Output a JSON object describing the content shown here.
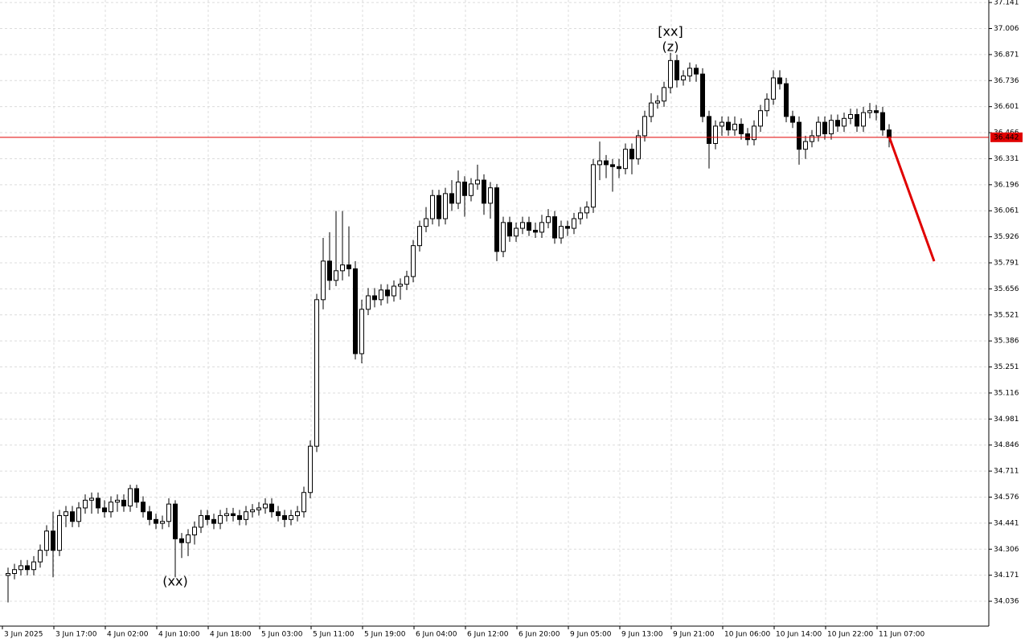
{
  "chart_data": {
    "type": "candlestick",
    "ylim": [
      33.907,
      37.154
    ],
    "yticks": [
      37.141,
      37.006,
      36.871,
      36.736,
      36.601,
      36.466,
      36.331,
      36.196,
      36.061,
      35.926,
      35.791,
      35.656,
      35.521,
      35.386,
      35.251,
      35.116,
      34.981,
      34.846,
      34.711,
      34.576,
      34.441,
      34.306,
      34.171,
      34.036
    ],
    "grid": true,
    "up_color": "#ffffff",
    "down_color": "#000000",
    "current_price": 36.442,
    "current_price_color": "#e00000",
    "annotations": [
      {
        "text": "(xx)",
        "color": "#2020d0"
      },
      {
        "text": "[xx]",
        "color": "#20c020"
      },
      {
        "text": "(z)",
        "color": "#2020d0"
      }
    ],
    "categories": [
      "3 Jun 2025",
      null,
      null,
      null,
      null,
      null,
      null,
      null,
      "3 Jun 17:00",
      null,
      null,
      null,
      null,
      null,
      null,
      null,
      "4 Jun 02:00",
      null,
      null,
      null,
      null,
      null,
      null,
      null,
      "4 Jun 10:00",
      null,
      null,
      null,
      null,
      null,
      null,
      null,
      "4 Jun 18:00",
      null,
      null,
      null,
      null,
      null,
      null,
      null,
      "5 Jun 03:00",
      null,
      null,
      null,
      null,
      null,
      null,
      null,
      "5 Jun 11:00",
      null,
      null,
      null,
      null,
      null,
      null,
      null,
      "5 Jun 19:00",
      null,
      null,
      null,
      null,
      null,
      null,
      null,
      "6 Jun 04:00",
      null,
      null,
      null,
      null,
      null,
      null,
      null,
      "6 Jun 12:00",
      null,
      null,
      null,
      null,
      null,
      null,
      null,
      "6 Jun 20:00",
      null,
      null,
      null,
      null,
      null,
      null,
      null,
      "9 Jun 05:00",
      null,
      null,
      null,
      null,
      null,
      null,
      null,
      "9 Jun 13:00",
      null,
      null,
      null,
      null,
      null,
      null,
      null,
      "9 Jun 21:00",
      null,
      null,
      null,
      null,
      null,
      null,
      null,
      "10 Jun 06:00",
      null,
      null,
      null,
      null,
      null,
      null,
      null,
      "10 Jun 14:00",
      null,
      null,
      null,
      null,
      null,
      null,
      null,
      "10 Jun 22:00",
      null,
      null,
      null,
      null,
      null,
      null,
      null,
      "11 Jun 07:00",
      null
    ],
    "ohlc": [
      [
        34.17,
        34.21,
        34.03,
        34.18
      ],
      [
        34.18,
        34.23,
        34.15,
        34.2
      ],
      [
        34.2,
        34.25,
        34.17,
        34.22
      ],
      [
        34.22,
        34.25,
        34.17,
        34.2
      ],
      [
        34.2,
        34.27,
        34.17,
        34.24
      ],
      [
        34.24,
        34.33,
        34.21,
        34.3
      ],
      [
        34.3,
        34.43,
        34.27,
        34.4
      ],
      [
        34.4,
        34.5,
        34.16,
        34.3
      ],
      [
        34.3,
        34.51,
        34.27,
        34.48
      ],
      [
        34.48,
        34.53,
        34.42,
        34.5
      ],
      [
        34.5,
        34.53,
        34.42,
        34.45
      ],
      [
        34.45,
        34.55,
        34.42,
        34.52
      ],
      [
        34.52,
        34.59,
        34.49,
        34.56
      ],
      [
        34.56,
        34.6,
        34.49,
        34.57
      ],
      [
        34.57,
        34.6,
        34.49,
        34.52
      ],
      [
        34.52,
        34.56,
        34.47,
        34.5
      ],
      [
        34.5,
        34.58,
        34.47,
        34.55
      ],
      [
        34.55,
        34.59,
        34.5,
        34.56
      ],
      [
        34.56,
        34.59,
        34.5,
        34.53
      ],
      [
        34.53,
        34.64,
        34.5,
        34.62
      ],
      [
        34.62,
        34.64,
        34.52,
        34.55
      ],
      [
        34.55,
        34.58,
        34.47,
        34.5
      ],
      [
        34.5,
        34.53,
        34.43,
        34.46
      ],
      [
        34.46,
        34.49,
        34.41,
        34.44
      ],
      [
        34.44,
        34.48,
        34.41,
        34.45
      ],
      [
        34.45,
        34.57,
        34.42,
        34.54
      ],
      [
        34.54,
        34.56,
        34.16,
        34.36
      ],
      [
        34.36,
        34.39,
        34.26,
        34.34
      ],
      [
        34.34,
        34.41,
        34.27,
        34.38
      ],
      [
        34.38,
        34.45,
        34.33,
        34.42
      ],
      [
        34.42,
        34.51,
        34.39,
        34.48
      ],
      [
        34.48,
        34.51,
        34.43,
        34.46
      ],
      [
        34.46,
        34.49,
        34.41,
        34.44
      ],
      [
        34.44,
        34.51,
        34.41,
        34.48
      ],
      [
        34.48,
        34.52,
        34.45,
        34.49
      ],
      [
        34.49,
        34.52,
        34.45,
        34.48
      ],
      [
        34.48,
        34.51,
        34.43,
        34.46
      ],
      [
        34.46,
        34.53,
        34.43,
        34.5
      ],
      [
        34.5,
        34.54,
        34.47,
        34.51
      ],
      [
        34.51,
        34.55,
        34.48,
        34.52
      ],
      [
        34.52,
        34.57,
        34.49,
        34.54
      ],
      [
        34.54,
        34.57,
        34.47,
        34.5
      ],
      [
        34.5,
        34.53,
        34.45,
        34.48
      ],
      [
        34.48,
        34.51,
        34.42,
        34.46
      ],
      [
        34.46,
        34.51,
        34.43,
        34.48
      ],
      [
        34.48,
        34.53,
        34.45,
        34.5
      ],
      [
        34.5,
        34.63,
        34.47,
        34.6
      ],
      [
        34.6,
        34.87,
        34.57,
        34.84
      ],
      [
        34.84,
        35.63,
        34.81,
        35.6
      ],
      [
        35.6,
        35.92,
        35.55,
        35.8
      ],
      [
        35.8,
        35.95,
        35.65,
        35.7
      ],
      [
        35.7,
        36.06,
        35.67,
        35.75
      ],
      [
        35.75,
        36.06,
        35.7,
        35.78
      ],
      [
        35.78,
        35.98,
        35.72,
        35.76
      ],
      [
        35.76,
        35.8,
        35.29,
        35.32
      ],
      [
        35.32,
        35.6,
        35.27,
        35.55
      ],
      [
        35.55,
        35.66,
        35.52,
        35.62
      ],
      [
        35.62,
        35.66,
        35.56,
        35.6
      ],
      [
        35.6,
        35.68,
        35.57,
        35.65
      ],
      [
        35.65,
        35.68,
        35.58,
        35.62
      ],
      [
        35.62,
        35.7,
        35.59,
        35.67
      ],
      [
        35.67,
        35.71,
        35.6,
        35.68
      ],
      [
        35.68,
        35.75,
        35.65,
        35.72
      ],
      [
        35.72,
        35.91,
        35.69,
        35.88
      ],
      [
        35.88,
        36.01,
        35.85,
        35.98
      ],
      [
        35.98,
        36.08,
        35.95,
        36.02
      ],
      [
        36.02,
        36.17,
        35.99,
        36.14
      ],
      [
        36.14,
        36.17,
        35.98,
        36.02
      ],
      [
        36.02,
        36.18,
        35.99,
        36.15
      ],
      [
        36.15,
        36.22,
        36.06,
        36.1
      ],
      [
        36.1,
        36.27,
        36.07,
        36.21
      ],
      [
        36.21,
        36.24,
        36.03,
        36.14
      ],
      [
        36.14,
        36.23,
        36.11,
        36.2
      ],
      [
        36.2,
        36.3,
        36.17,
        36.22
      ],
      [
        36.22,
        36.25,
        36.04,
        36.1
      ],
      [
        36.1,
        36.21,
        36.02,
        36.18
      ],
      [
        36.18,
        36.2,
        35.8,
        35.85
      ],
      [
        35.85,
        36.03,
        35.82,
        36.0
      ],
      [
        36.0,
        36.03,
        35.9,
        35.93
      ],
      [
        35.93,
        36.0,
        35.9,
        35.97
      ],
      [
        35.97,
        36.03,
        35.94,
        36.0
      ],
      [
        36.0,
        36.03,
        35.93,
        35.96
      ],
      [
        35.96,
        36.0,
        35.92,
        35.95
      ],
      [
        35.95,
        36.04,
        35.92,
        36.0
      ],
      [
        36.0,
        36.07,
        35.97,
        36.03
      ],
      [
        36.03,
        36.06,
        35.89,
        35.92
      ],
      [
        35.92,
        36.01,
        35.89,
        35.98
      ],
      [
        35.98,
        36.01,
        35.93,
        35.97
      ],
      [
        35.97,
        36.05,
        35.94,
        36.02
      ],
      [
        36.02,
        36.08,
        35.99,
        36.05
      ],
      [
        36.05,
        36.11,
        36.02,
        36.08
      ],
      [
        36.08,
        36.33,
        36.05,
        36.3
      ],
      [
        36.3,
        36.42,
        36.22,
        36.32
      ],
      [
        36.32,
        36.35,
        36.23,
        36.3
      ],
      [
        36.3,
        36.33,
        36.16,
        36.29
      ],
      [
        36.29,
        36.33,
        36.23,
        36.28
      ],
      [
        36.28,
        36.41,
        36.25,
        36.38
      ],
      [
        36.38,
        36.41,
        36.25,
        36.33
      ],
      [
        36.33,
        36.48,
        36.3,
        36.45
      ],
      [
        36.45,
        36.58,
        36.42,
        36.55
      ],
      [
        36.55,
        36.67,
        36.52,
        36.62
      ],
      [
        36.62,
        36.66,
        36.59,
        36.63
      ],
      [
        36.63,
        36.73,
        36.6,
        36.7
      ],
      [
        36.7,
        36.88,
        36.67,
        36.84
      ],
      [
        36.84,
        36.87,
        36.7,
        36.74
      ],
      [
        36.74,
        36.79,
        36.71,
        36.76
      ],
      [
        36.76,
        36.83,
        36.73,
        36.8
      ],
      [
        36.8,
        36.82,
        36.73,
        36.77
      ],
      [
        36.77,
        36.8,
        36.52,
        36.55
      ],
      [
        36.55,
        36.58,
        36.28,
        36.41
      ],
      [
        36.41,
        36.53,
        36.38,
        36.5
      ],
      [
        36.5,
        36.55,
        36.45,
        36.52
      ],
      [
        36.52,
        36.55,
        36.45,
        36.48
      ],
      [
        36.48,
        36.55,
        36.45,
        36.51
      ],
      [
        36.51,
        36.54,
        36.43,
        36.46
      ],
      [
        36.46,
        36.49,
        36.4,
        36.43
      ],
      [
        36.43,
        36.53,
        36.4,
        36.5
      ],
      [
        36.5,
        36.61,
        36.47,
        36.58
      ],
      [
        36.58,
        36.67,
        36.55,
        36.64
      ],
      [
        36.64,
        36.79,
        36.61,
        36.75
      ],
      [
        36.75,
        36.79,
        36.69,
        36.72
      ],
      [
        36.72,
        36.75,
        36.52,
        36.55
      ],
      [
        36.55,
        36.58,
        36.49,
        36.52
      ],
      [
        36.52,
        36.55,
        36.3,
        36.38
      ],
      [
        36.38,
        36.45,
        36.33,
        36.42
      ],
      [
        36.42,
        36.48,
        36.39,
        36.45
      ],
      [
        36.45,
        36.55,
        36.42,
        36.52
      ],
      [
        36.52,
        36.55,
        36.43,
        36.46
      ],
      [
        36.46,
        36.56,
        36.43,
        36.53
      ],
      [
        36.53,
        36.56,
        36.47,
        36.5
      ],
      [
        36.5,
        36.57,
        36.47,
        36.54
      ],
      [
        36.54,
        36.59,
        36.51,
        36.56
      ],
      [
        36.56,
        36.59,
        36.47,
        36.5
      ],
      [
        36.5,
        36.6,
        36.47,
        36.57
      ],
      [
        36.57,
        36.62,
        36.54,
        36.58
      ],
      [
        36.58,
        36.61,
        36.53,
        36.57
      ],
      [
        36.57,
        36.6,
        36.45,
        36.48
      ],
      [
        36.48,
        36.51,
        36.39,
        36.44
      ]
    ]
  }
}
